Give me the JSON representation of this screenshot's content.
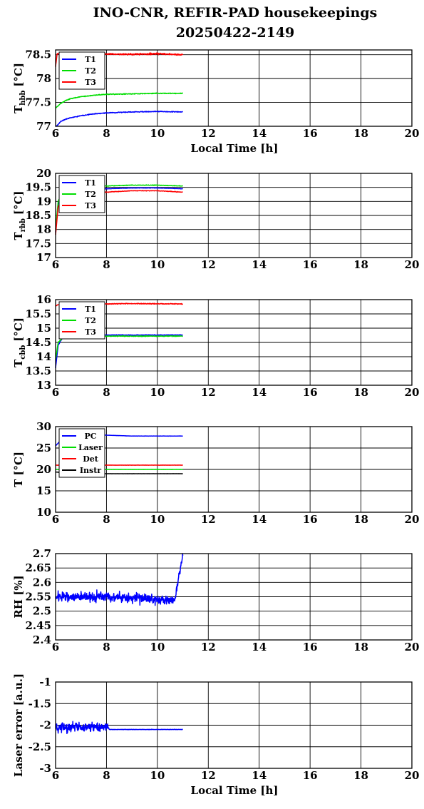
{
  "figure": {
    "title_line1": "INO-CNR, REFIR-PAD housekeepings",
    "title_line2": "20250422-2149"
  },
  "colors": {
    "blue": "#0000ff",
    "green": "#00dd00",
    "red": "#ff0000",
    "black": "#000000"
  },
  "chart_data": [
    {
      "type": "line",
      "ylabel_main": "T",
      "ylabel_sub": "hbb",
      "ylabel_unit": "[°C]",
      "xlabel": "Local Time [h]",
      "xlim": [
        6,
        20
      ],
      "ylim": [
        77,
        78.6
      ],
      "xticks": [
        "6",
        "8",
        "10",
        "12",
        "14",
        "16",
        "18",
        "20"
      ],
      "yticks": [
        {
          "v": 77,
          "t": "77"
        },
        {
          "v": 77.5,
          "t": "77.5"
        },
        {
          "v": 78,
          "t": "78"
        },
        {
          "v": 78.5,
          "t": "78.5"
        }
      ],
      "grid": true,
      "legend_position": "top-left",
      "series": [
        {
          "name": "T1",
          "color": "#0000ff",
          "noise": 0.012,
          "points": [
            [
              6.0,
              76.98
            ],
            [
              6.2,
              77.1
            ],
            [
              6.4,
              77.15
            ],
            [
              6.6,
              77.18
            ],
            [
              7.0,
              77.22
            ],
            [
              7.5,
              77.26
            ],
            [
              8.0,
              77.28
            ],
            [
              9.0,
              77.3
            ],
            [
              10.0,
              77.31
            ],
            [
              11.0,
              77.3
            ]
          ]
        },
        {
          "name": "T2",
          "color": "#00dd00",
          "noise": 0.012,
          "points": [
            [
              6.0,
              77.38
            ],
            [
              6.2,
              77.48
            ],
            [
              6.4,
              77.54
            ],
            [
              6.6,
              77.58
            ],
            [
              7.0,
              77.62
            ],
            [
              7.5,
              77.65
            ],
            [
              8.0,
              77.67
            ],
            [
              9.0,
              77.68
            ],
            [
              10.0,
              77.69
            ],
            [
              11.0,
              77.69
            ]
          ]
        },
        {
          "name": "T3",
          "color": "#ff0000",
          "noise": 0.025,
          "points": [
            [
              6.0,
              78.25
            ],
            [
              6.06,
              78.52
            ],
            [
              7.0,
              78.52
            ],
            [
              8.0,
              78.51
            ],
            [
              9.0,
              78.51
            ],
            [
              10.0,
              78.52
            ],
            [
              11.0,
              78.5
            ]
          ]
        }
      ]
    },
    {
      "type": "line",
      "ylabel_main": "T",
      "ylabel_sub": "rbb",
      "ylabel_unit": "[°C]",
      "xlabel": "",
      "xlim": [
        6,
        20
      ],
      "ylim": [
        17,
        20
      ],
      "xticks": [
        "6",
        "8",
        "10",
        "12",
        "14",
        "16",
        "18",
        "20"
      ],
      "yticks": [
        {
          "v": 17,
          "t": "17"
        },
        {
          "v": 17.5,
          "t": "17.5"
        },
        {
          "v": 18,
          "t": "18"
        },
        {
          "v": 18.5,
          "t": "18.5"
        },
        {
          "v": 19,
          "t": "19"
        },
        {
          "v": 19.5,
          "t": "19.5"
        },
        {
          "v": 20,
          "t": "20"
        }
      ],
      "grid": true,
      "legend_position": "top-left",
      "series": [
        {
          "name": "T1",
          "color": "#0000ff",
          "noise": 0.012,
          "points": [
            [
              6.0,
              17.9
            ],
            [
              6.1,
              18.9
            ],
            [
              6.3,
              19.3
            ],
            [
              7.0,
              19.4
            ],
            [
              8.0,
              19.45
            ],
            [
              9.0,
              19.48
            ],
            [
              10.0,
              19.48
            ],
            [
              11.0,
              19.45
            ]
          ]
        },
        {
          "name": "T2",
          "color": "#00dd00",
          "noise": 0.015,
          "points": [
            [
              6.0,
              18.0
            ],
            [
              6.1,
              19.0
            ],
            [
              6.3,
              19.4
            ],
            [
              7.0,
              19.5
            ],
            [
              8.0,
              19.55
            ],
            [
              9.0,
              19.58
            ],
            [
              10.0,
              19.58
            ],
            [
              11.0,
              19.55
            ]
          ]
        },
        {
          "name": "T3",
          "color": "#ff0000",
          "noise": 0.015,
          "points": [
            [
              6.0,
              17.8
            ],
            [
              6.1,
              18.8
            ],
            [
              6.3,
              19.2
            ],
            [
              7.0,
              19.3
            ],
            [
              8.0,
              19.33
            ],
            [
              9.0,
              19.38
            ],
            [
              10.0,
              19.38
            ],
            [
              11.0,
              19.33
            ]
          ]
        }
      ]
    },
    {
      "type": "line",
      "ylabel_main": "T",
      "ylabel_sub": "cbb",
      "ylabel_unit": "[°C]",
      "xlabel": "",
      "xlim": [
        6,
        20
      ],
      "ylim": [
        13,
        16
      ],
      "xticks": [
        "6",
        "8",
        "10",
        "12",
        "14",
        "16",
        "18",
        "20"
      ],
      "yticks": [
        {
          "v": 13,
          "t": "13"
        },
        {
          "v": 13.5,
          "t": "13.5"
        },
        {
          "v": 14,
          "t": "14"
        },
        {
          "v": 14.5,
          "t": "14.5"
        },
        {
          "v": 15,
          "t": "15"
        },
        {
          "v": 15.5,
          "t": "15.5"
        },
        {
          "v": 16,
          "t": "16"
        }
      ],
      "grid": true,
      "legend_position": "top-left",
      "series": [
        {
          "name": "T1",
          "color": "#0000ff",
          "noise": 0.015,
          "points": [
            [
              6.0,
              13.6
            ],
            [
              6.1,
              14.4
            ],
            [
              6.3,
              14.7
            ],
            [
              7.0,
              14.76
            ],
            [
              9.0,
              14.76
            ],
            [
              11.0,
              14.76
            ]
          ]
        },
        {
          "name": "T2",
          "color": "#00dd00",
          "noise": 0.02,
          "points": [
            [
              6.0,
              13.9
            ],
            [
              6.1,
              14.5
            ],
            [
              6.3,
              14.68
            ],
            [
              7.0,
              14.72
            ],
            [
              9.0,
              14.72
            ],
            [
              11.0,
              14.72
            ]
          ]
        },
        {
          "name": "T3",
          "color": "#ff0000",
          "noise": 0.02,
          "points": [
            [
              6.0,
              15.78
            ],
            [
              6.1,
              15.82
            ],
            [
              7.0,
              15.84
            ],
            [
              9.0,
              15.86
            ],
            [
              11.0,
              15.85
            ]
          ]
        }
      ]
    },
    {
      "type": "line",
      "ylabel_main": "T [°C]",
      "ylabel_sub": "",
      "ylabel_unit": "",
      "xlabel": "",
      "xlim": [
        6,
        20
      ],
      "ylim": [
        10,
        30
      ],
      "xticks": [
        "6",
        "8",
        "10",
        "12",
        "14",
        "16",
        "18",
        "20"
      ],
      "yticks": [
        {
          "v": 10,
          "t": "10"
        },
        {
          "v": 15,
          "t": "15"
        },
        {
          "v": 20,
          "t": "20"
        },
        {
          "v": 25,
          "t": "25"
        },
        {
          "v": 30,
          "t": "30"
        }
      ],
      "grid": true,
      "legend_position": "top-left",
      "series": [
        {
          "name": "PC",
          "color": "#0000ff",
          "noise": 0.04,
          "points": [
            [
              6.0,
              25.5
            ],
            [
              6.2,
              26.8
            ],
            [
              6.5,
              27.5
            ],
            [
              7.0,
              28.0
            ],
            [
              8.0,
              28.0
            ],
            [
              9.0,
              27.8
            ],
            [
              10.0,
              27.8
            ],
            [
              11.0,
              27.8
            ]
          ]
        },
        {
          "name": "Laser",
          "color": "#00dd00",
          "noise": 0.02,
          "points": [
            [
              6.0,
              20.0
            ],
            [
              11.0,
              20.0
            ]
          ]
        },
        {
          "name": "Det",
          "color": "#ff0000",
          "noise": 0.03,
          "points": [
            [
              6.0,
              21.0
            ],
            [
              11.0,
              21.0
            ]
          ]
        },
        {
          "name": "Instr",
          "color": "#000000",
          "noise": 0.02,
          "points": [
            [
              6.0,
              19.4
            ],
            [
              6.5,
              19.1
            ],
            [
              7.0,
              19.0
            ],
            [
              11.0,
              19.0
            ]
          ]
        }
      ]
    },
    {
      "type": "line",
      "ylabel_main": "RH [%]",
      "ylabel_sub": "",
      "ylabel_unit": "",
      "xlabel": "",
      "xlim": [
        6,
        20
      ],
      "ylim": [
        2.4,
        2.7
      ],
      "xticks": [
        "6",
        "8",
        "10",
        "12",
        "14",
        "16",
        "18",
        "20"
      ],
      "yticks": [
        {
          "v": 2.4,
          "t": "2.4"
        },
        {
          "v": 2.45,
          "t": "2.45"
        },
        {
          "v": 2.5,
          "t": "2.5"
        },
        {
          "v": 2.55,
          "t": "2.55"
        },
        {
          "v": 2.6,
          "t": "2.6"
        },
        {
          "v": 2.65,
          "t": "2.65"
        },
        {
          "v": 2.7,
          "t": "2.7"
        }
      ],
      "grid": true,
      "legend_position": "none",
      "series": [
        {
          "name": "",
          "color": "#0000ff",
          "noise": 0.025,
          "points": [
            [
              6.0,
              2.55
            ],
            [
              8.0,
              2.55
            ],
            [
              10.0,
              2.54
            ],
            [
              10.7,
              2.54
            ],
            [
              10.75,
              2.57
            ],
            [
              10.8,
              2.6
            ],
            [
              10.9,
              2.64
            ],
            [
              11.0,
              2.7
            ]
          ]
        }
      ]
    },
    {
      "type": "line",
      "ylabel_main": "Laser error [a.u.]",
      "ylabel_sub": "",
      "ylabel_unit": "",
      "xlabel": "Local Time [h]",
      "xlim": [
        6,
        20
      ],
      "ylim": [
        -3,
        -1
      ],
      "xticks": [
        "6",
        "8",
        "10",
        "12",
        "14",
        "16",
        "18",
        "20"
      ],
      "yticks": [
        {
          "v": -3,
          "t": "-3"
        },
        {
          "v": -2.5,
          "t": "-2.5"
        },
        {
          "v": -2,
          "t": "-2"
        },
        {
          "v": -1.5,
          "t": "-1.5"
        },
        {
          "v": -1,
          "t": "-1"
        }
      ],
      "grid": true,
      "legend_position": "none",
      "series": [
        {
          "name": "",
          "color": "#0000ff",
          "noise": 0.16,
          "noise_until": 8.1,
          "points": [
            [
              6.0,
              -2.05
            ],
            [
              7.0,
              -2.05
            ],
            [
              8.0,
              -2.05
            ],
            [
              8.1,
              -2.1
            ],
            [
              9.0,
              -2.1
            ],
            [
              11.0,
              -2.1
            ]
          ]
        }
      ]
    }
  ]
}
